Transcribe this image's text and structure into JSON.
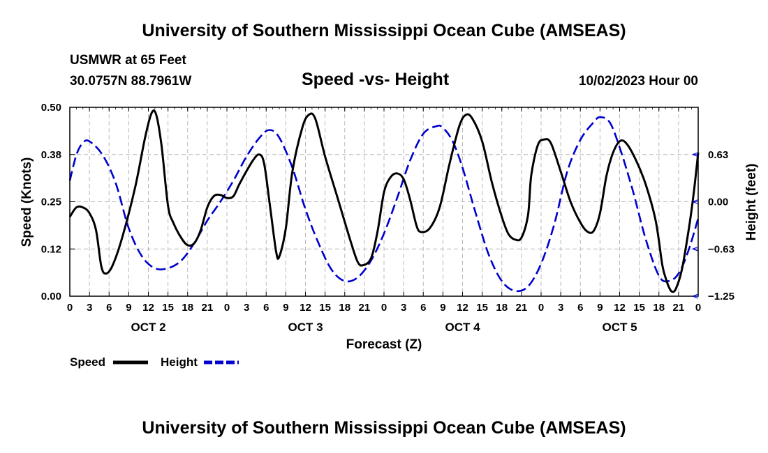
{
  "header": {
    "title": "University of Southern Mississippi Ocean Cube (AMSEAS)",
    "station": "USMWR at 65 Feet",
    "coordinates": "30.0757N  88.7961W",
    "datetime": "10/02/2023 Hour 00",
    "footer_title": "University of Southern Mississippi Ocean Cube (AMSEAS)"
  },
  "colors": {
    "speed": "#000000",
    "height": "#0000cc",
    "grid": "#b8b8b8"
  },
  "chart_data": {
    "type": "line",
    "title": "Speed -vs- Height",
    "xlabel": "Forecast (Z)",
    "ylabel": "Speed (Knots)",
    "y2label": "Height (feet)",
    "x_range_hours": [
      0,
      96
    ],
    "ylim": [
      0,
      0.5
    ],
    "y2lim": [
      -1.25,
      1.25
    ],
    "yticks": [
      0.0,
      0.125,
      0.25,
      0.375,
      0.5
    ],
    "yticklabels": [
      "0.00",
      "0.12",
      "0.25",
      "0.38",
      "0.50"
    ],
    "y2ticks": [
      -1.25,
      -0.625,
      0.0,
      0.625
    ],
    "y2ticklabels": [
      "−1.25",
      "−0.63",
      "0.00",
      "0.63"
    ],
    "xticks": [
      0,
      3,
      6,
      9,
      12,
      15,
      18,
      21,
      24,
      27,
      30,
      33,
      36,
      39,
      42,
      45,
      48,
      51,
      54,
      57,
      60,
      63,
      66,
      69,
      72,
      75,
      78,
      81,
      84,
      87,
      90,
      93,
      96
    ],
    "xticklabels": [
      "0",
      "3",
      "6",
      "9",
      "12",
      "15",
      "18",
      "21",
      "0",
      "3",
      "6",
      "9",
      "12",
      "15",
      "18",
      "21",
      "0",
      "3",
      "6",
      "9",
      "12",
      "15",
      "18",
      "21",
      "0",
      "3",
      "6",
      "9",
      "12",
      "15",
      "18",
      "21",
      "0"
    ],
    "day_labels": [
      {
        "hour": 12,
        "label": "OCT 2"
      },
      {
        "hour": 36,
        "label": "OCT 3"
      },
      {
        "hour": 60,
        "label": "OCT 4"
      },
      {
        "hour": 84,
        "label": "OCT 5"
      }
    ],
    "legend": [
      {
        "name": "Speed",
        "style": "solid"
      },
      {
        "name": "Height",
        "style": "dashed"
      }
    ],
    "series": [
      {
        "name": "Speed",
        "axis": "left",
        "points": [
          [
            0,
            0.21
          ],
          [
            1,
            0.235
          ],
          [
            2,
            0.235
          ],
          [
            3,
            0.22
          ],
          [
            4,
            0.175
          ],
          [
            4.8,
            0.08
          ],
          [
            5.5,
            0.06
          ],
          [
            6.5,
            0.08
          ],
          [
            8,
            0.155
          ],
          [
            10,
            0.29
          ],
          [
            11.5,
            0.42
          ],
          [
            12.5,
            0.485
          ],
          [
            13.2,
            0.48
          ],
          [
            14,
            0.4
          ],
          [
            15,
            0.24
          ],
          [
            15.8,
            0.195
          ],
          [
            17,
            0.155
          ],
          [
            18,
            0.135
          ],
          [
            19,
            0.14
          ],
          [
            20,
            0.175
          ],
          [
            21,
            0.235
          ],
          [
            22,
            0.265
          ],
          [
            23,
            0.268
          ],
          [
            24,
            0.26
          ],
          [
            25,
            0.265
          ],
          [
            26,
            0.3
          ],
          [
            28,
            0.36
          ],
          [
            29,
            0.375
          ],
          [
            29.7,
            0.35
          ],
          [
            30.5,
            0.25
          ],
          [
            31.5,
            0.12
          ],
          [
            32,
            0.105
          ],
          [
            33,
            0.18
          ],
          [
            34,
            0.33
          ],
          [
            35.5,
            0.445
          ],
          [
            36.5,
            0.48
          ],
          [
            37.5,
            0.47
          ],
          [
            39,
            0.37
          ],
          [
            41,
            0.255
          ],
          [
            43,
            0.14
          ],
          [
            44,
            0.09
          ],
          [
            44.8,
            0.082
          ],
          [
            46,
            0.1
          ],
          [
            47,
            0.17
          ],
          [
            48,
            0.275
          ],
          [
            49,
            0.315
          ],
          [
            50,
            0.325
          ],
          [
            51,
            0.31
          ],
          [
            52,
            0.255
          ],
          [
            53,
            0.185
          ],
          [
            53.7,
            0.17
          ],
          [
            55,
            0.18
          ],
          [
            56.5,
            0.235
          ],
          [
            58,
            0.35
          ],
          [
            59.5,
            0.45
          ],
          [
            60.5,
            0.48
          ],
          [
            61.5,
            0.47
          ],
          [
            63,
            0.41
          ],
          [
            64.5,
            0.3
          ],
          [
            66,
            0.21
          ],
          [
            67,
            0.165
          ],
          [
            68,
            0.15
          ],
          [
            69,
            0.155
          ],
          [
            70,
            0.215
          ],
          [
            70.5,
            0.32
          ],
          [
            71.5,
            0.4
          ],
          [
            72.5,
            0.415
          ],
          [
            73.5,
            0.405
          ],
          [
            75,
            0.33
          ],
          [
            76.5,
            0.25
          ],
          [
            78,
            0.195
          ],
          [
            79,
            0.172
          ],
          [
            80,
            0.172
          ],
          [
            81,
            0.22
          ],
          [
            82,
            0.32
          ],
          [
            83,
            0.38
          ],
          [
            84,
            0.41
          ],
          [
            85,
            0.405
          ],
          [
            86.5,
            0.36
          ],
          [
            88,
            0.295
          ],
          [
            89.5,
            0.2
          ],
          [
            90.5,
            0.085
          ],
          [
            91,
            0.05
          ],
          [
            91.5,
            0.025
          ],
          [
            92,
            0.012
          ],
          [
            92.6,
            0.02
          ],
          [
            93.5,
            0.07
          ],
          [
            94.5,
            0.17
          ],
          [
            95.3,
            0.27
          ],
          [
            96,
            0.38
          ]
        ]
      },
      {
        "name": "Height",
        "axis": "right",
        "points": [
          [
            0,
            0.28
          ],
          [
            1,
            0.62
          ],
          [
            2,
            0.78
          ],
          [
            3,
            0.8
          ],
          [
            5,
            0.62
          ],
          [
            7,
            0.25
          ],
          [
            9,
            -0.35
          ],
          [
            11,
            -0.72
          ],
          [
            13,
            -0.88
          ],
          [
            15,
            -0.88
          ],
          [
            17,
            -0.78
          ],
          [
            19,
            -0.55
          ],
          [
            21,
            -0.25
          ],
          [
            23,
            0.0
          ],
          [
            25,
            0.28
          ],
          [
            27,
            0.6
          ],
          [
            29,
            0.85
          ],
          [
            30.5,
            0.95
          ],
          [
            32,
            0.85
          ],
          [
            34,
            0.45
          ],
          [
            36,
            -0.1
          ],
          [
            38,
            -0.55
          ],
          [
            40,
            -0.9
          ],
          [
            42,
            -1.05
          ],
          [
            44,
            -1.0
          ],
          [
            46,
            -0.78
          ],
          [
            48,
            -0.42
          ],
          [
            50,
            0.05
          ],
          [
            52,
            0.55
          ],
          [
            54,
            0.9
          ],
          [
            56,
            1.0
          ],
          [
            57,
            0.98
          ],
          [
            58.5,
            0.8
          ],
          [
            60,
            0.45
          ],
          [
            62,
            -0.15
          ],
          [
            64,
            -0.7
          ],
          [
            66,
            -1.05
          ],
          [
            68,
            -1.18
          ],
          [
            70,
            -1.12
          ],
          [
            72,
            -0.82
          ],
          [
            74,
            -0.3
          ],
          [
            76,
            0.4
          ],
          [
            78,
            0.82
          ],
          [
            80,
            1.05
          ],
          [
            81,
            1.12
          ],
          [
            82.5,
            1.05
          ],
          [
            84,
            0.72
          ],
          [
            86,
            0.15
          ],
          [
            88,
            -0.5
          ],
          [
            90,
            -0.98
          ],
          [
            91.5,
            -1.05
          ],
          [
            93,
            -0.95
          ],
          [
            94.5,
            -0.65
          ],
          [
            96,
            -0.22
          ]
        ]
      }
    ]
  }
}
